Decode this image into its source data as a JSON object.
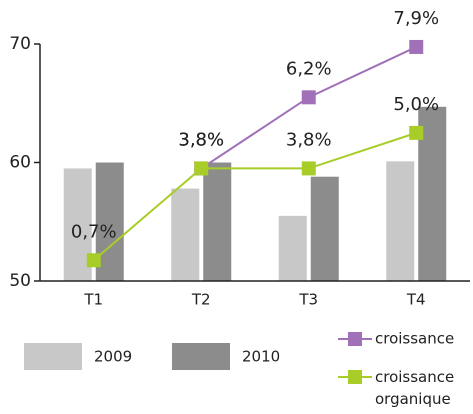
{
  "chart_data": {
    "type": "bar",
    "categories": [
      "T1",
      "T2",
      "T3",
      "T4"
    ],
    "ylim": [
      50,
      70
    ],
    "yticks": [
      50,
      60,
      70
    ],
    "y2lim": [
      0,
      8
    ],
    "series": [
      {
        "name": "2009",
        "color": "#c8c8c8",
        "values": [
          59.5,
          57.8,
          55.5,
          60.1
        ]
      },
      {
        "name": "2010",
        "color": "#8c8c8c",
        "values": [
          60,
          60,
          58.8,
          64.7
        ]
      },
      {
        "name": "croissance",
        "type": "line",
        "axis": "y2",
        "color": "#a070b8",
        "values": [
          null,
          3.8,
          6.2,
          7.9
        ],
        "value_labels": [
          null,
          "3,8%",
          "6,2%",
          "7,9%"
        ]
      },
      {
        "name": "croissance organique",
        "type": "line",
        "axis": "y2",
        "color": "#a8cc28",
        "values": [
          0.7,
          3.8,
          3.8,
          5.0
        ],
        "value_labels": [
          "0,7%",
          "3,8%",
          "3,8%",
          "5,0%"
        ]
      }
    ]
  }
}
